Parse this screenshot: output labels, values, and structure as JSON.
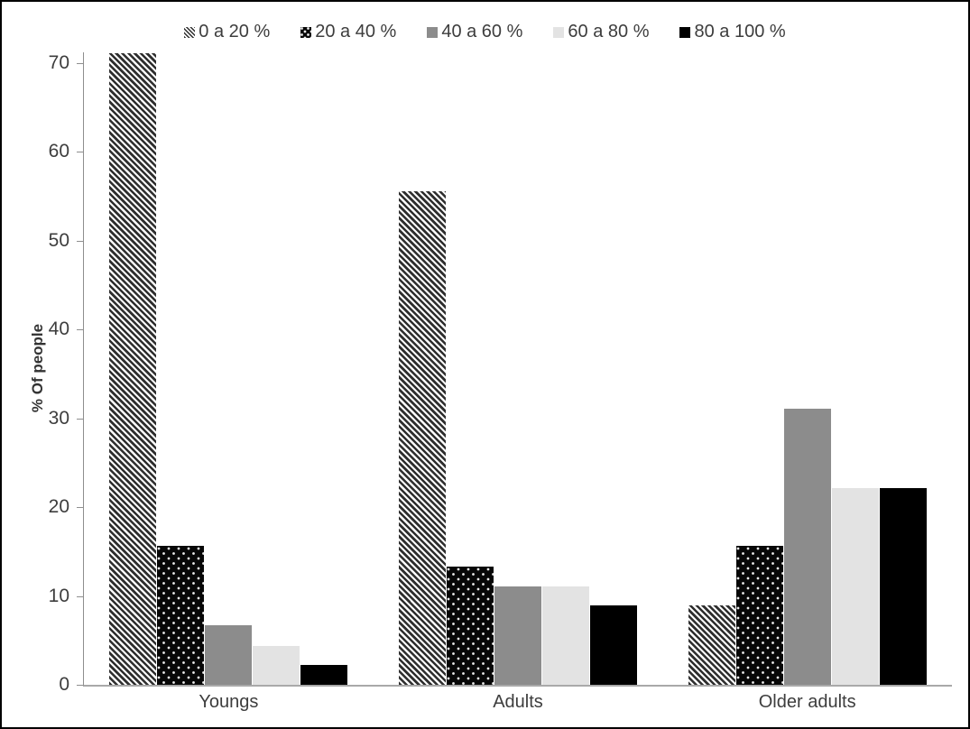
{
  "chart_data": {
    "type": "bar",
    "title": "",
    "xlabel": "",
    "ylabel": "% Of people",
    "categories": [
      "Youngs",
      "Adults",
      "Older adults"
    ],
    "series": [
      {
        "name": "0 a 20 %",
        "pattern": "diagonal-hatch",
        "values": [
          71.1,
          55.6,
          8.9
        ]
      },
      {
        "name": "20 a 40 %",
        "pattern": "black-white-dots",
        "values": [
          15.6,
          13.3,
          15.6
        ]
      },
      {
        "name": "40 a 60 %",
        "pattern": "solid-gray",
        "values": [
          6.7,
          11.1,
          31.1
        ]
      },
      {
        "name": "60 a 80 %",
        "pattern": "solid-light-gray",
        "values": [
          4.4,
          11.1,
          22.2
        ]
      },
      {
        "name": "80 a 100 %",
        "pattern": "solid-black",
        "values": [
          2.2,
          8.9,
          22.2
        ]
      }
    ],
    "yticks": [
      0,
      10,
      20,
      30,
      40,
      50,
      60,
      70
    ],
    "ylim": [
      0,
      71.3
    ],
    "grid": false,
    "legend_position": "top",
    "colors": {
      "hatch_stroke": "#2e2e2e",
      "dot_fill_bg": "#070707",
      "gray": "#8c8c8c",
      "light_gray": "#e3e3e3",
      "black": "#000000",
      "axis_line": "#8e8e8e",
      "baseline": "#a9a9a9",
      "text": "#3d3d3d",
      "frame_border": "#000000"
    }
  }
}
